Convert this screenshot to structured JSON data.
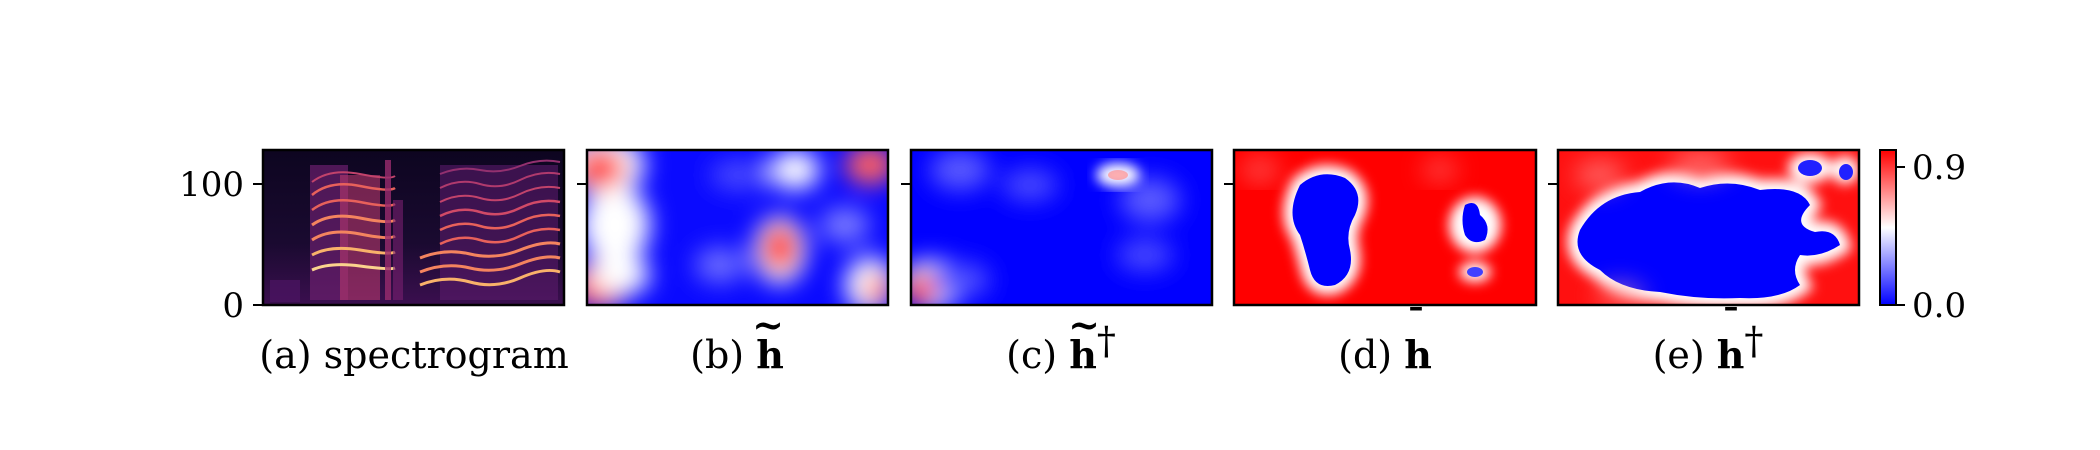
{
  "chart_data": {
    "type": "heatmap",
    "panels": [
      {
        "id": "a",
        "caption_prefix": "(a) ",
        "caption": "spectrogram",
        "kind": "spectrogram",
        "y_ticks": [
          {
            "value": 0,
            "label": "0"
          },
          {
            "value": 100,
            "label": "100"
          }
        ],
        "ylim": [
          0,
          128
        ]
      },
      {
        "id": "b",
        "caption_prefix": "(b) ",
        "symbol": "h",
        "accent": "~",
        "dagger": "",
        "kind": "map"
      },
      {
        "id": "c",
        "caption_prefix": "(c) ",
        "symbol": "h",
        "accent": "~",
        "dagger": "†",
        "kind": "map"
      },
      {
        "id": "d",
        "caption_prefix": "(d) ",
        "symbol": "h",
        "accent": "¯",
        "dagger": "",
        "kind": "map"
      },
      {
        "id": "e",
        "caption_prefix": "(e) ",
        "symbol": "h",
        "accent": "¯",
        "dagger": "†",
        "kind": "map"
      }
    ],
    "colorbar": {
      "min": 0.0,
      "max": 0.9,
      "tick_labels": [
        "0.9",
        "0.0"
      ],
      "colors": {
        "low": "#0000ff",
        "mid": "#ffffff",
        "high": "#ff0000"
      }
    }
  }
}
